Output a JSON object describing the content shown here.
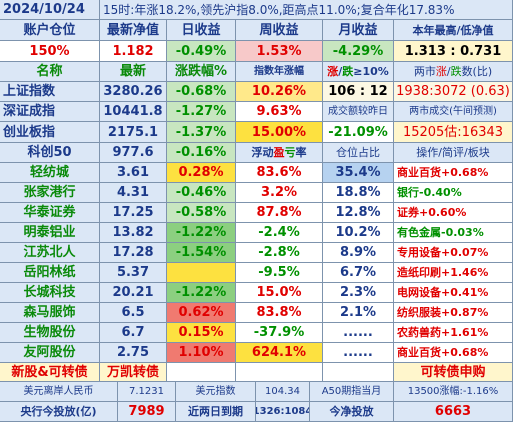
{
  "title": {
    "date": "2024/10/24",
    "summary": "15时:年涨18.2%,领先沪指8.0%,距高点11.0%;复合年化17.83%"
  },
  "header": [
    "账户仓位",
    "最新净值",
    "日收益",
    "周收益",
    "月收益",
    "本年最高/低净值"
  ],
  "account": {
    "position": "150%",
    "nav": "1.182",
    "day": "-0.49%",
    "week": "1.53%",
    "month": "-4.29%",
    "year_hl": "1.313 : 0.731"
  },
  "index_header": {
    "name": "名称",
    "latest": "最新",
    "change": "涨跌幅%",
    "ytd": "指数年涨幅",
    "updown_a": "涨",
    "updown_b": "/",
    "updown_c": "跌",
    "updown_d": "≥10%",
    "market_a": "两市",
    "market_b": "涨",
    "market_c": "/",
    "market_d": "跌",
    "market_e": "数(比)"
  },
  "indices": [
    {
      "name": "上证指数",
      "latest": "3280.26",
      "change": "-0.68%",
      "ytd": "10.26%",
      "c5": "106 : 12",
      "c6": "1938:3072 (0.63)"
    },
    {
      "name": "深证成指",
      "latest": "10441.8",
      "change": "-1.27%",
      "ytd": "9.63%",
      "c5": "成交额较昨日",
      "c6": "两市成交(午间预测)"
    },
    {
      "name": "创业板指",
      "latest": "2175.1",
      "change": "-1.37%",
      "ytd": "15.00%",
      "c5": "-21.09%",
      "c6": "15205估:16343"
    },
    {
      "name": "科创50",
      "latest": "977.6",
      "change": "-0.16%",
      "ytd_a": "浮动",
      "ytd_b": "盈",
      "ytd_c": "亏",
      "ytd_d": "率",
      "c5": "仓位占比",
      "c6": "操作/简评/板块"
    }
  ],
  "stocks": [
    {
      "name": "轻纺城",
      "price": "3.61",
      "change": "0.28%",
      "pnl": "83.6%",
      "weight": "35.4%",
      "note": "商业百货+0.68%"
    },
    {
      "name": "张家港行",
      "price": "4.31",
      "change": "-0.46%",
      "pnl": "3.2%",
      "weight": "18.8%",
      "note": "银行-0.40%"
    },
    {
      "name": "华泰证券",
      "price": "17.25",
      "change": "-0.58%",
      "pnl": "87.8%",
      "weight": "12.8%",
      "note": "证券+0.60%"
    },
    {
      "name": "明泰铝业",
      "price": "13.82",
      "change": "-1.22%",
      "pnl": "-2.4%",
      "weight": "10.2%",
      "note": "有色金属-0.03%"
    },
    {
      "name": "江苏北人",
      "price": "17.28",
      "change": "-1.54%",
      "pnl": "-2.8%",
      "weight": "8.9%",
      "note": "专用设备+0.07%"
    },
    {
      "name": "岳阳林纸",
      "price": "5.37",
      "change": "",
      "pnl": "-9.5%",
      "weight": "6.7%",
      "note": "造纸印刷+1.46%"
    },
    {
      "name": "长城科技",
      "price": "20.21",
      "change": "-1.22%",
      "pnl": "15.0%",
      "weight": "2.3%",
      "note": "电网设备+0.41%"
    },
    {
      "name": "森马服饰",
      "price": "6.5",
      "change": "0.62%",
      "pnl": "83.8%",
      "weight": "2.1%",
      "note": "纺织服装+0.87%"
    },
    {
      "name": "生物股份",
      "price": "6.7",
      "change": "0.15%",
      "pnl": "-37.9%",
      "weight": "......",
      "note": "农药兽药+1.61%"
    },
    {
      "name": "友阿股份",
      "price": "2.75",
      "change": "1.10%",
      "pnl": "624.1%",
      "weight": "......",
      "note": "商业百货+0.68%"
    }
  ],
  "newstock": {
    "label": "新股&可转债",
    "status": "万凯转债",
    "result": "可转债申购"
  },
  "footer1": {
    "l1": "美元离岸人民币",
    "v1": "7.1231",
    "l2": "美元指数",
    "v2": "104.34",
    "l3": "A50期指当月",
    "v3": "13500涨幅:-1.16%"
  },
  "footer2": {
    "l1": "央行今投放(亿)",
    "v1": "7989",
    "l2": "近两日到期",
    "v2": "1326:1084",
    "l3": "今净投放",
    "v3": "6663"
  },
  "colors": {
    "header_bg": "#dbe7f6",
    "name_green": "#0a8a0a",
    "up_red": "#e00000",
    "down_green": "#009000",
    "border": "#7d93ad"
  }
}
